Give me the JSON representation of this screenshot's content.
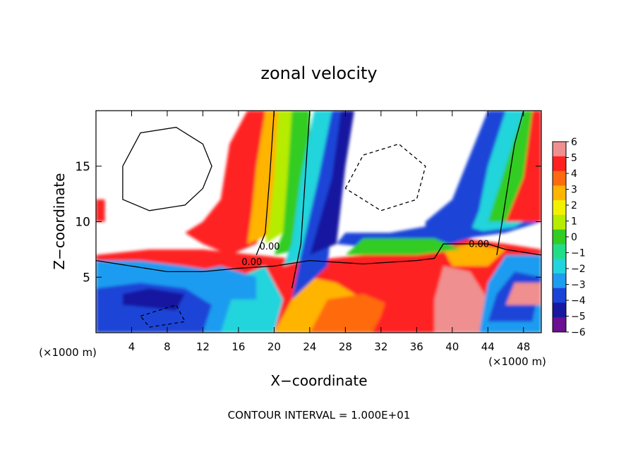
{
  "chart_data": {
    "type": "heatmap",
    "title": "zonal velocity",
    "xlabel": "X−coordinate",
    "ylabel": "Z−coordinate",
    "x_unit_left": "(×1000 m)",
    "x_unit_right": "(×1000 m)",
    "xlim": [
      0,
      50
    ],
    "ylim": [
      0,
      20
    ],
    "x_ticks": [
      4,
      8,
      12,
      16,
      20,
      24,
      28,
      32,
      36,
      40,
      44,
      48
    ],
    "y_ticks": [
      5,
      10,
      15
    ],
    "colorbar": {
      "min": -6,
      "max": 6,
      "ticks": [
        "6",
        "5",
        "4",
        "3",
        "2",
        "1",
        "0",
        "−1",
        "−2",
        "−3",
        "−4",
        "−5",
        "−6"
      ],
      "colors": [
        "#f08f8f",
        "#ff2020",
        "#ff6a10",
        "#ffb400",
        "#f2f200",
        "#b6ec00",
        "#33cc22",
        "#22dd88",
        "#22d4dc",
        "#1e9cf0",
        "#1a44d8",
        "#1818a0",
        "#6a1090"
      ]
    },
    "contour_labels": [
      "0.00",
      "0.00",
      "0.00"
    ],
    "footer": "CONTOUR INTERVAL = 1.000E+01"
  }
}
